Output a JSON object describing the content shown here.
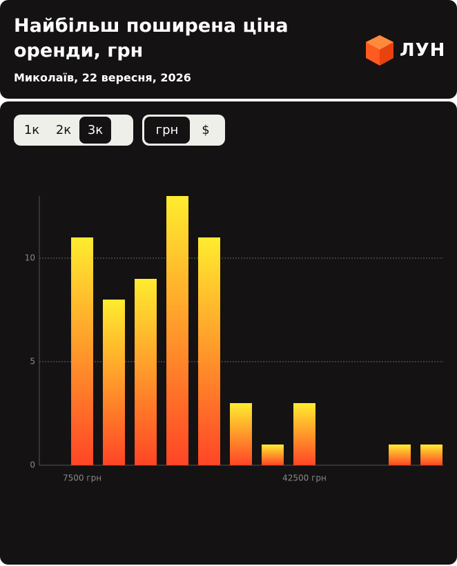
{
  "header": {
    "title": "Найбільш поширена ціна оренди, грн",
    "subtitle": "Миколаїв, 22 вересня, 2026",
    "logo": "ЛУН"
  },
  "controls": {
    "rooms": [
      "1к",
      "2к",
      "3к"
    ],
    "currency": [
      "грн",
      "$"
    ]
  },
  "chart_data": {
    "type": "bar",
    "categories": [
      "7500 грн",
      null,
      null,
      null,
      null,
      null,
      null,
      "42500 грн",
      null,
      null,
      null,
      null
    ],
    "values": [
      11,
      8,
      9,
      13,
      11,
      3,
      1,
      3,
      0,
      0,
      1,
      1
    ],
    "colors": [
      "#ffec2f",
      "#ff4526"
    ],
    "ylim": [
      0,
      13
    ],
    "yticks": [
      0,
      5,
      10
    ],
    "grid": true
  }
}
